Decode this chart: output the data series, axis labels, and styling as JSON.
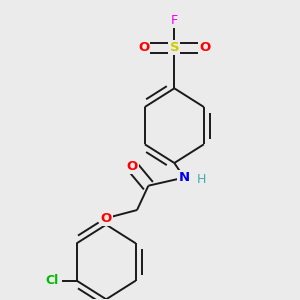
{
  "background_color": "#ebebeb",
  "bond_color": "#1a1a1a",
  "atom_colors": {
    "F": "#ee00ee",
    "S": "#cccc00",
    "O": "#ff0000",
    "N": "#0000ee",
    "H": "#44aaaa",
    "Cl": "#00bb00",
    "C": "#1a1a1a"
  },
  "figsize": [
    3.0,
    3.0
  ],
  "dpi": 100
}
